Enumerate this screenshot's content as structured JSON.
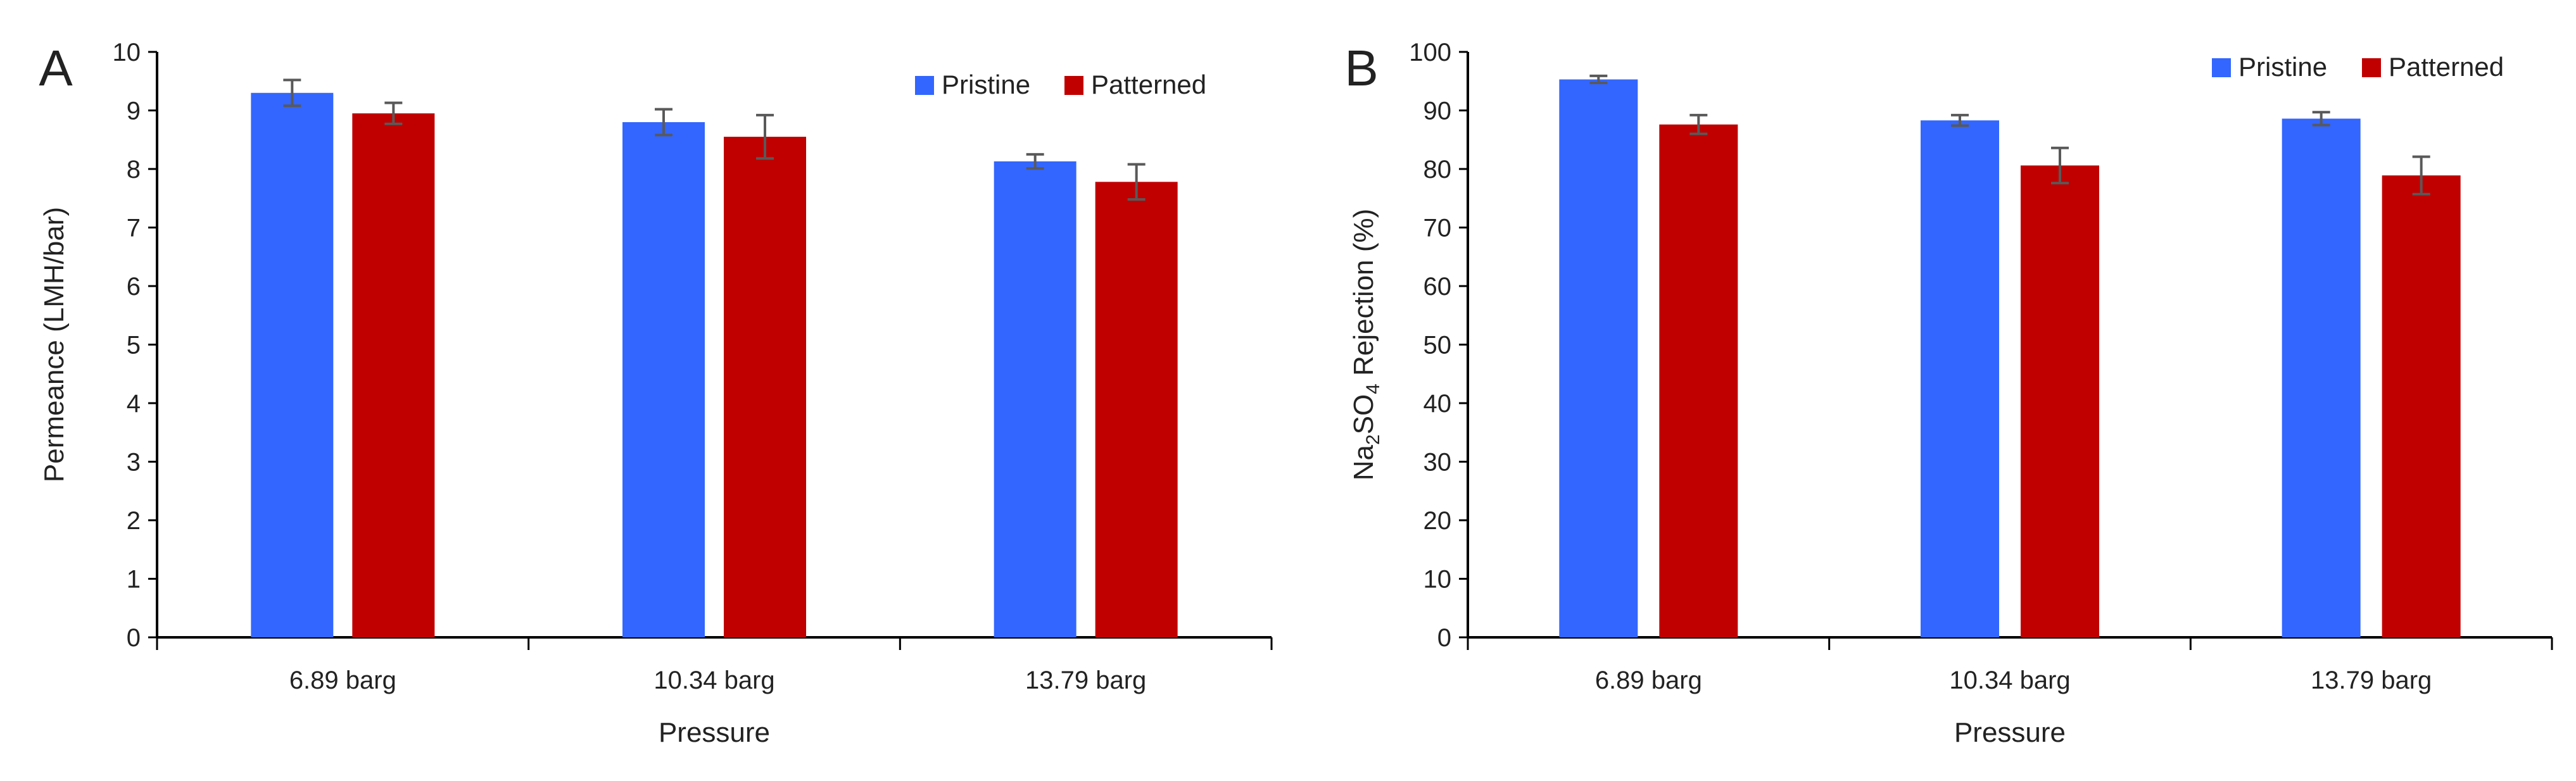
{
  "chart_data": [
    {
      "type": "bar",
      "panel_label": "A",
      "title": "",
      "xlabel": "Pressure",
      "ylabel": "Permeance (LMH/bar)",
      "ylim": [
        0,
        10
      ],
      "yticks": [
        0,
        1,
        2,
        3,
        4,
        5,
        6,
        7,
        8,
        9,
        10
      ],
      "grid": false,
      "legend_position": "top-right",
      "categories": [
        "6.89 barg",
        "10.34 barg",
        "13.79 barg"
      ],
      "series": [
        {
          "name": "Pristine",
          "color": "#3366ff",
          "values": [
            9.3,
            8.8,
            8.13
          ],
          "errors": [
            0.22,
            0.22,
            0.12
          ]
        },
        {
          "name": "Patterned",
          "color": "#c00000",
          "values": [
            8.95,
            8.55,
            7.78
          ],
          "errors": [
            0.18,
            0.37,
            0.3
          ]
        }
      ]
    },
    {
      "type": "bar",
      "panel_label": "B",
      "title": "",
      "xlabel": "Pressure",
      "ylabel": "Na2SO4 Rejection (%)",
      "ylabel_parts": {
        "prefix": "Na",
        "sub1": "2",
        "mid": "SO",
        "sub2": "4",
        "suffix": " Rejection (%)"
      },
      "ylim": [
        0,
        100
      ],
      "yticks": [
        0,
        10,
        20,
        30,
        40,
        50,
        60,
        70,
        80,
        90,
        100
      ],
      "grid": false,
      "legend_position": "top-right",
      "categories": [
        "6.89 barg",
        "10.34 barg",
        "13.79 barg"
      ],
      "series": [
        {
          "name": "Pristine",
          "color": "#3366ff",
          "values": [
            95.3,
            88.3,
            88.6
          ],
          "errors": [
            0.6,
            0.9,
            1.1
          ]
        },
        {
          "name": "Patterned",
          "color": "#c00000",
          "values": [
            87.6,
            80.6,
            78.9
          ],
          "errors": [
            1.6,
            3.0,
            3.2
          ]
        }
      ]
    }
  ]
}
